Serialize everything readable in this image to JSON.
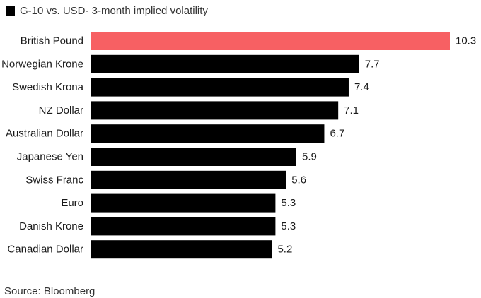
{
  "chart_data": {
    "type": "bar",
    "orientation": "horizontal",
    "title": "G-10 vs. USD- 3-month implied volatility",
    "legend": [
      {
        "name": "G-10 vs. USD- 3-month implied volatility",
        "color": "#000000"
      }
    ],
    "categories": [
      "British Pound",
      "Norwegian Krone",
      "Swedish Krona",
      "NZ Dollar",
      "Australian Dollar",
      "Japanese Yen",
      "Swiss Franc",
      "Euro",
      "Danish Krone",
      "Canadian Dollar"
    ],
    "values": [
      10.3,
      7.7,
      7.4,
      7.1,
      6.7,
      5.9,
      5.6,
      5.3,
      5.3,
      5.2
    ],
    "value_labels": [
      "10.3",
      "7.7",
      "7.4",
      "7.1",
      "6.7",
      "5.9",
      "5.6",
      "5.3",
      "5.3",
      "5.2"
    ],
    "highlight_index": 0,
    "colors": {
      "default": "#000000",
      "highlight": "#f76063"
    },
    "xlim": [
      0,
      10.3
    ],
    "grid": false,
    "source": "Source: Bloomberg"
  }
}
